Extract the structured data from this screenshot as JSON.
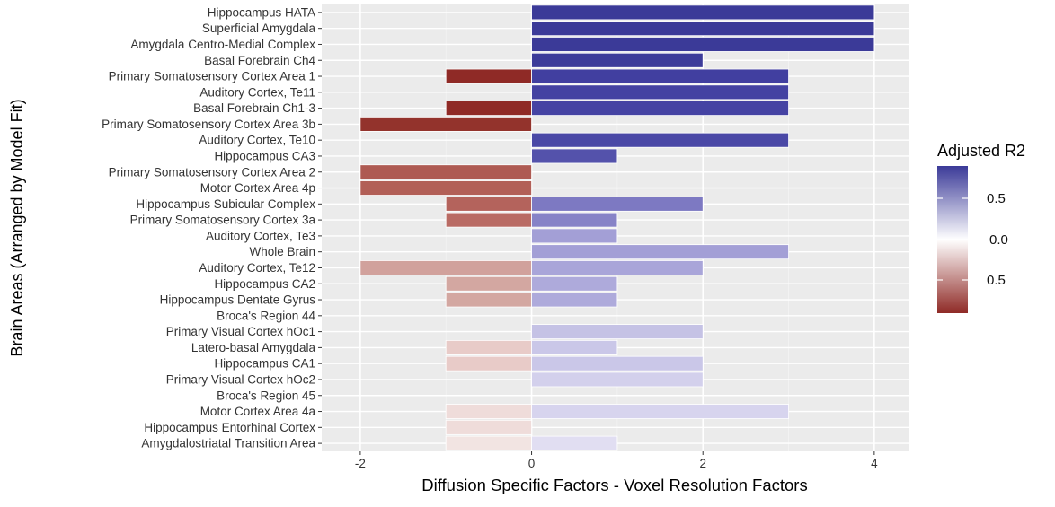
{
  "chart_data": {
    "type": "bar",
    "orientation": "horizontal",
    "xlabel": "Diffusion Specific Factors  -  Voxel Resolution Factors",
    "ylabel": "Brain Areas (Arranged by Model Fit)",
    "xlim": [
      -2.45,
      4.4
    ],
    "x_ticks": [
      -2,
      0,
      2,
      4
    ],
    "grid": true,
    "categories": [
      "Hippocampus HATA",
      "Superficial Amygdala",
      "Amygdala Centro-Medial Complex",
      "Basal Forebrain Ch4",
      "Primary Somatosensory Cortex Area 1",
      "Auditory Cortex, Te11",
      "Basal Forebrain Ch1-3",
      "Primary Somatosensory Cortex Area 3b",
      "Auditory Cortex, Te10",
      "Hippocampus CA3",
      "Primary Somatosensory Cortex Area 2",
      "Motor Cortex Area 4p",
      "Hippocampus Subicular Complex",
      "Primary Somatosensory Cortex 3a",
      "Auditory Cortex, Te3",
      "Whole Brain",
      "Auditory Cortex, Te12",
      "Hippocampus CA2",
      "Hippocampus Dentate Gyrus",
      "Broca's Region 44",
      "Primary Visual Cortex hOc1",
      "Latero-basal Amygdala",
      "Hippocampus CA1",
      "Primary Visual Cortex hOc2",
      "Broca's Region 45",
      "Motor Cortex Area 4a",
      "Hippocampus Entorhinal Cortex",
      "Amygdalostriatal Transition Area"
    ],
    "series": [
      {
        "name": "Voxel Resolution Factors",
        "values": [
          0,
          0,
          0,
          0,
          -1,
          0,
          -1,
          -2,
          0,
          0,
          -2,
          -2,
          -1,
          -1,
          0,
          0,
          -2,
          -1,
          -1,
          0,
          0,
          -1,
          -1,
          0,
          0,
          -1,
          -1,
          -1
        ],
        "colors": [
          "#3b3a98",
          "#3b3a98",
          "#3b3a98",
          "#3b3a98",
          "#8f2a26",
          "#3b3a98",
          "#8f2a26",
          "#93332c",
          "#3b3a98",
          "#4543a0",
          "#ae5a52",
          "#b25f57",
          "#b4635c",
          "#b96b64",
          "#8a86cc",
          "#8a86cc",
          "#d1a19c",
          "#d3a7a1",
          "#d3a7a1",
          "#fff",
          "#fff",
          "#e8cbc8",
          "#e8cbc8",
          "#fff",
          "#fff",
          "#efdcda",
          "#efdcda",
          "#f2e4e2"
        ]
      },
      {
        "name": "Diffusion Specific Factors",
        "values": [
          4,
          4,
          4,
          2,
          3,
          3,
          3,
          0,
          3,
          1,
          0,
          0,
          2,
          1,
          1,
          3,
          2,
          1,
          1,
          0,
          2,
          1,
          2,
          2,
          0,
          3,
          0,
          1
        ],
        "colors": [
          "#3b3a98",
          "#3b3a98",
          "#3b3a98",
          "#3d3c9a",
          "#413fa0",
          "#4442a2",
          "#4543a3",
          "#4a48a5",
          "#4a48a6",
          "#5452ab",
          "#5f5db0",
          "#5f5db0",
          "#7d79c2",
          "#8783c7",
          "#a39fd6",
          "#a39fd6",
          "#a9a5d9",
          "#aeaadb",
          "#aeaadb",
          "#fff",
          "#c5c2e5",
          "#cac7e8",
          "#cac7e8",
          "#d3d0ec",
          "#fff",
          "#d7d4ee",
          "#fff",
          "#e1def2"
        ]
      }
    ],
    "legend": {
      "title": "Adjusted R2",
      "placement": "right",
      "labels": [
        "0.5",
        "0.0",
        "0.5"
      ],
      "gradient_colors": [
        "#3b3a98",
        "#ffffff",
        "#8f2a26"
      ]
    },
    "colors": {
      "panel_bg": "#ebebeb",
      "grid_major": "#ffffff",
      "grid_minor": "#f3f3f3",
      "positive": "#3b3a98",
      "negative": "#8f2a26"
    }
  }
}
